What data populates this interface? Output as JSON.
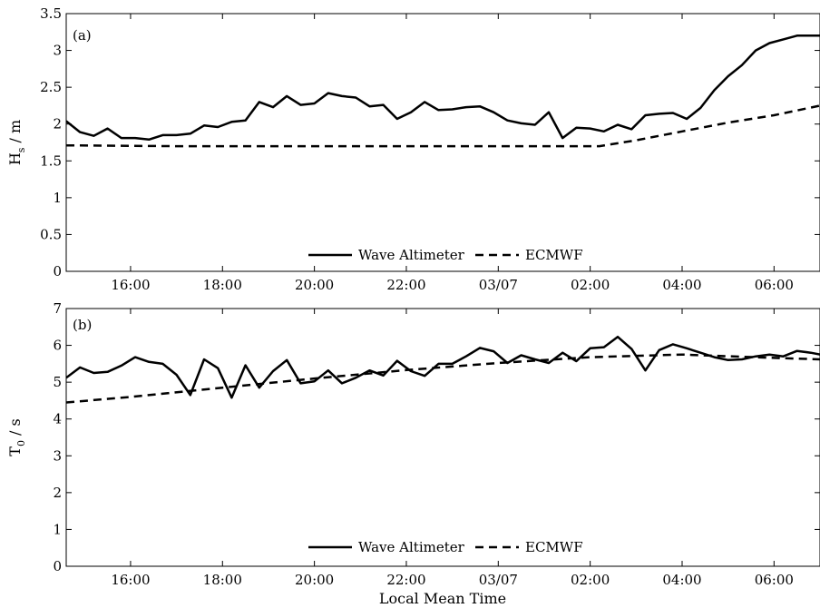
{
  "chart_data": [
    {
      "type": "line",
      "panel_label": "(a)",
      "ylabel": "H_s / m",
      "ylim": [
        0,
        3.5
      ],
      "yticks": [
        0,
        0.5,
        1,
        1.5,
        2,
        2.5,
        3,
        3.5
      ],
      "xlim": [
        14.6,
        31.0
      ],
      "xticks": [
        16,
        18,
        20,
        22,
        24,
        26,
        28,
        30
      ],
      "xtick_labels": [
        "16:00",
        "18:00",
        "20:00",
        "22:00",
        "03/07",
        "02:00",
        "04:00",
        "06:00"
      ],
      "legend_position": "bottom-center",
      "series": [
        {
          "name": "Wave Altimeter",
          "style": "solid",
          "x": [
            14.6,
            14.9,
            15.2,
            15.5,
            15.8,
            16.1,
            16.4,
            16.7,
            17.0,
            17.3,
            17.6,
            17.9,
            18.2,
            18.5,
            18.8,
            19.1,
            19.4,
            19.7,
            20.0,
            20.3,
            20.6,
            20.9,
            21.2,
            21.5,
            21.8,
            22.1,
            22.4,
            22.7,
            23.0,
            23.3,
            23.6,
            23.9,
            24.2,
            24.5,
            24.8,
            25.1,
            25.4,
            25.7,
            26.0,
            26.3,
            26.6,
            26.9,
            27.2,
            27.5,
            27.8,
            28.1,
            28.4,
            28.7,
            29.0,
            29.3,
            29.6,
            29.9,
            30.2,
            30.5,
            30.8,
            31.0
          ],
          "y": [
            2.04,
            1.89,
            1.84,
            1.94,
            1.81,
            1.81,
            1.79,
            1.85,
            1.85,
            1.87,
            1.98,
            1.96,
            2.03,
            2.05,
            2.3,
            2.23,
            2.38,
            2.26,
            2.28,
            2.42,
            2.38,
            2.36,
            2.24,
            2.26,
            2.07,
            2.16,
            2.3,
            2.19,
            2.2,
            2.23,
            2.24,
            2.16,
            2.05,
            2.01,
            1.99,
            2.16,
            1.81,
            1.95,
            1.94,
            1.9,
            1.99,
            1.93,
            2.12,
            2.14,
            2.15,
            2.07,
            2.22,
            2.46,
            2.65,
            2.8,
            3.0,
            3.1,
            3.15,
            3.2,
            3.2,
            3.2
          ]
        },
        {
          "name": "ECMWF",
          "style": "dashed",
          "x": [
            14.6,
            17.0,
            20.0,
            23.0,
            25.0,
            26.2,
            27.0,
            28.0,
            29.0,
            30.0,
            31.0
          ],
          "y": [
            1.71,
            1.7,
            1.7,
            1.7,
            1.7,
            1.7,
            1.78,
            1.9,
            2.02,
            2.12,
            2.25
          ]
        }
      ]
    },
    {
      "type": "line",
      "panel_label": "(b)",
      "ylabel": "T_0 / s",
      "ylim": [
        0,
        7
      ],
      "yticks": [
        0,
        1,
        2,
        3,
        4,
        5,
        6,
        7
      ],
      "xlim": [
        14.6,
        31.0
      ],
      "xticks": [
        16,
        18,
        20,
        22,
        24,
        26,
        28,
        30
      ],
      "xtick_labels": [
        "16:00",
        "18:00",
        "20:00",
        "22:00",
        "03/07",
        "02:00",
        "04:00",
        "06:00"
      ],
      "xlabel": "Local Mean Time",
      "legend_position": "bottom-center",
      "series": [
        {
          "name": "Wave Altimeter",
          "style": "solid",
          "x": [
            14.6,
            14.9,
            15.2,
            15.5,
            15.8,
            16.1,
            16.4,
            16.7,
            17.0,
            17.3,
            17.6,
            17.9,
            18.2,
            18.5,
            18.8,
            19.1,
            19.4,
            19.7,
            20.0,
            20.3,
            20.6,
            20.9,
            21.2,
            21.5,
            21.8,
            22.1,
            22.4,
            22.7,
            23.0,
            23.3,
            23.6,
            23.9,
            24.2,
            24.5,
            24.8,
            25.1,
            25.4,
            25.7,
            26.0,
            26.3,
            26.6,
            26.9,
            27.2,
            27.5,
            27.8,
            28.1,
            28.4,
            28.7,
            29.0,
            29.3,
            29.6,
            29.9,
            30.2,
            30.5,
            30.8,
            31.0
          ],
          "y": [
            5.12,
            5.4,
            5.25,
            5.28,
            5.45,
            5.68,
            5.55,
            5.5,
            5.2,
            4.65,
            5.62,
            5.38,
            4.58,
            5.46,
            4.85,
            5.3,
            5.6,
            4.97,
            5.02,
            5.32,
            4.97,
            5.12,
            5.32,
            5.18,
            5.58,
            5.3,
            5.17,
            5.5,
            5.5,
            5.7,
            5.93,
            5.84,
            5.52,
            5.73,
            5.62,
            5.52,
            5.8,
            5.57,
            5.92,
            5.95,
            6.23,
            5.9,
            5.32,
            5.87,
            6.03,
            5.92,
            5.8,
            5.68,
            5.6,
            5.62,
            5.7,
            5.75,
            5.7,
            5.85,
            5.8,
            5.75
          ]
        },
        {
          "name": "ECMWF",
          "style": "dashed",
          "x": [
            14.6,
            16.0,
            18.0,
            20.0,
            22.0,
            24.0,
            26.0,
            28.0,
            30.0,
            31.0
          ],
          "y": [
            4.45,
            4.6,
            4.85,
            5.1,
            5.33,
            5.52,
            5.68,
            5.75,
            5.66,
            5.62
          ]
        }
      ]
    }
  ]
}
